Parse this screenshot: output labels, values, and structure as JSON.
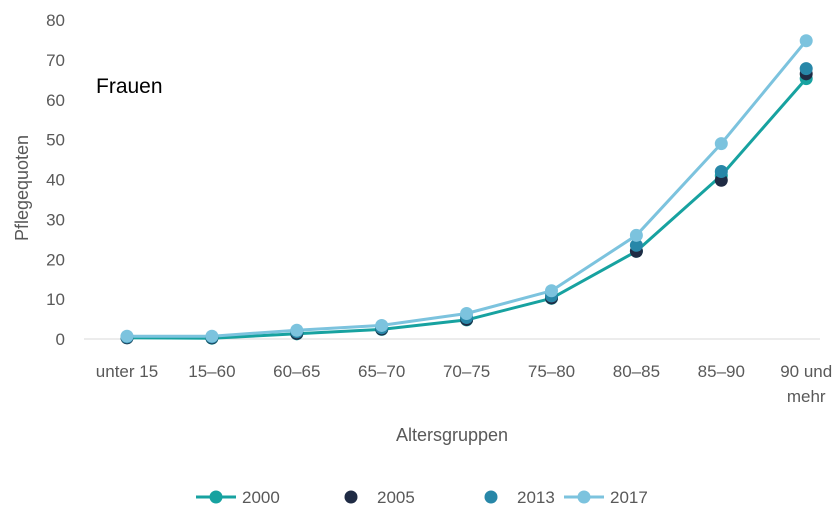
{
  "chart_data": {
    "type": "line",
    "annotation": "Frauen",
    "xlabel": "Altersgruppen",
    "ylabel": "Pflegequoten",
    "ylim": [
      0,
      80
    ],
    "yticks": [
      "0",
      "10",
      "20",
      "30",
      "40",
      "50",
      "60",
      "70",
      "80"
    ],
    "categories": [
      [
        "unter 15"
      ],
      [
        "15–60"
      ],
      [
        "60–65"
      ],
      [
        "65–70"
      ],
      [
        "70–75"
      ],
      [
        "75–80"
      ],
      [
        "80–85"
      ],
      [
        "85–90"
      ],
      [
        "90 und",
        "mehr"
      ]
    ],
    "grid": false,
    "legend_position": "bottom",
    "series": [
      {
        "name": "2000",
        "color": "#17A2A0",
        "line": true,
        "values": [
          0.3,
          0.2,
          1.3,
          2.4,
          4.8,
          10.2,
          22.0,
          41.0,
          65.3
        ]
      },
      {
        "name": "2005",
        "color": "#1F2B44",
        "line": false,
        "values": [
          0.3,
          0.3,
          1.4,
          2.5,
          4.9,
          10.3,
          22.0,
          39.8,
          66.5
        ]
      },
      {
        "name": "2013",
        "color": "#2887A8",
        "line": false,
        "values": [
          0.5,
          0.5,
          1.8,
          2.8,
          5.4,
          10.8,
          23.5,
          42.0,
          67.8
        ]
      },
      {
        "name": "2017",
        "color": "#7CC3DE",
        "line": true,
        "values": [
          0.7,
          0.7,
          2.2,
          3.4,
          6.4,
          12.1,
          26.0,
          49.0,
          74.8
        ]
      }
    ]
  }
}
